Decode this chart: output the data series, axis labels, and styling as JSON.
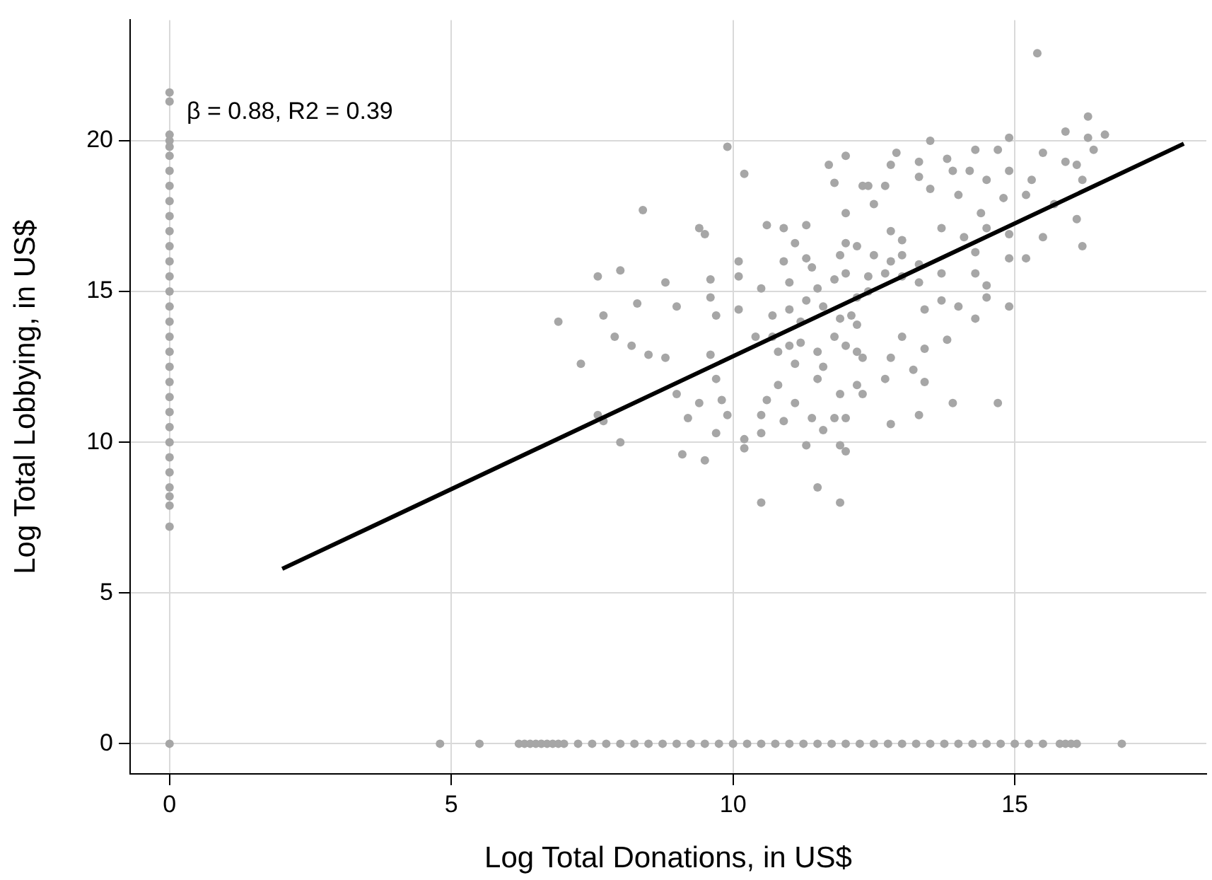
{
  "chart_data": {
    "type": "scatter",
    "xlabel": "Log Total Donations, in US$",
    "ylabel": "Log Total Lobbying, in US$",
    "annotations": [
      "β = 0.88, R2 = 0.39"
    ],
    "xlim": [
      -0.7,
      18.4
    ],
    "ylim": [
      -1,
      24
    ],
    "xticks": [
      0,
      5,
      10,
      15
    ],
    "yticks": [
      0,
      5,
      10,
      15,
      20
    ],
    "grid": true,
    "legend": false,
    "series": [
      {
        "color": "#a6a6a6",
        "marker": "circle",
        "x": [
          0,
          0,
          0,
          0,
          0,
          0,
          0,
          0,
          0,
          0,
          0,
          0,
          0,
          0,
          0,
          0,
          0,
          0,
          0,
          0,
          0,
          0,
          0,
          0,
          0,
          0,
          0,
          0,
          0,
          0,
          0,
          0,
          4.8,
          5.5,
          6.2,
          6.3,
          6.4,
          6.5,
          6.6,
          6.7,
          6.8,
          6.9,
          7.0,
          7.25,
          7.5,
          7.75,
          8.0,
          8.25,
          8.5,
          8.75,
          9.0,
          9.25,
          9.5,
          9.75,
          10.0,
          10.25,
          10.5,
          10.75,
          11.0,
          11.25,
          11.5,
          11.75,
          12.0,
          12.25,
          12.5,
          12.75,
          13.0,
          13.25,
          13.5,
          13.75,
          14.0,
          14.25,
          14.5,
          14.75,
          15.0,
          15.25,
          15.5,
          15.8,
          15.9,
          16.0,
          16.1,
          16.9,
          9.9,
          10.2,
          8.4,
          9.4,
          9.5,
          10.6,
          10.9,
          11.3,
          11.7,
          12.0,
          11.8,
          12.0,
          7.6,
          8.0,
          8.8,
          6.9,
          7.3,
          7.7,
          7.9,
          8.2,
          8.3,
          8.5,
          9.0,
          9.6,
          9.6,
          9.7,
          10.1,
          10.1,
          10.5,
          10.1,
          10.4,
          7.6,
          8.0,
          7.7,
          8.8,
          9.0,
          9.1,
          9.5,
          9.2,
          9.4,
          9.7,
          9.8,
          9.9,
          9.7,
          9.6,
          10.2,
          10.2,
          10.5,
          10.5,
          10.6,
          10.5,
          10.8,
          10.9,
          11.1,
          11.1,
          11.4,
          11.6,
          11.3,
          11.5,
          11.9,
          11.9,
          12.0,
          11.8,
          11.5,
          11.9,
          12.0,
          11.0,
          11.3,
          11.5,
          11.8,
          12.0,
          11.0,
          10.9,
          11.3,
          11.1,
          12.0,
          12.2,
          10.7,
          10.8,
          11.2,
          11.5,
          11.8,
          12.0,
          12.3,
          12.2,
          11.9,
          12.2,
          12.3,
          15.4,
          16.3,
          15.9,
          16.3,
          16.6,
          16.4,
          14.9,
          13.5,
          14.3,
          14.7,
          12.9,
          15.5,
          13.3,
          15.9,
          16.1,
          12.8,
          13.8,
          16.2,
          12.4,
          12.7,
          13.3,
          13.9,
          14.2,
          14.5,
          14.9,
          15.3,
          13.5,
          14.0,
          14.8,
          15.2,
          15.7,
          16.1,
          15.5,
          16.2,
          15.2,
          14.9,
          14.9,
          14.7,
          13.9,
          12.8,
          13.7,
          14.4,
          12.5,
          13.0,
          14.1,
          14.5,
          14.9,
          13.3,
          13.7,
          14.3,
          14.3,
          14.5,
          14.5,
          14.0,
          13.7,
          13.3,
          13.4,
          13.8,
          14.3,
          13.4,
          13.2,
          13.4,
          13.0,
          12.8,
          12.7,
          12.3,
          12.8,
          13.3,
          12.1,
          12.4,
          12.7,
          12.5,
          13.0,
          11.2,
          11.6,
          12.4,
          12.8,
          12.2,
          13.0,
          11.4,
          11.9,
          10.7,
          11.0,
          11.6,
          12.2
        ],
        "values": [
          0,
          7.2,
          7.9,
          8.2,
          8.5,
          9.0,
          9.5,
          10.0,
          10.5,
          11.0,
          11.5,
          12.0,
          12.5,
          13.0,
          13.5,
          14.0,
          14.5,
          15.0,
          15.5,
          16.0,
          16.5,
          17.0,
          17.5,
          18.0,
          18.5,
          19.0,
          19.5,
          19.8,
          20.0,
          20.2,
          21.3,
          21.6,
          0,
          0,
          0,
          0,
          0,
          0,
          0,
          0,
          0,
          0,
          0,
          0,
          0,
          0,
          0,
          0,
          0,
          0,
          0,
          0,
          0,
          0,
          0,
          0,
          0,
          0,
          0,
          0,
          0,
          0,
          0,
          0,
          0,
          0,
          0,
          0,
          0,
          0,
          0,
          0,
          0,
          0,
          0,
          0,
          0,
          0,
          0,
          0,
          0,
          0,
          19.8,
          18.9,
          17.7,
          17.1,
          16.9,
          17.2,
          17.1,
          17.2,
          19.2,
          19.5,
          18.6,
          17.6,
          15.5,
          15.7,
          15.3,
          14.0,
          12.6,
          14.2,
          13.5,
          13.2,
          14.6,
          12.9,
          14.5,
          15.4,
          14.8,
          14.2,
          16.0,
          15.5,
          15.1,
          14.4,
          13.5,
          10.9,
          10.0,
          10.7,
          12.8,
          11.6,
          9.6,
          9.4,
          10.8,
          11.3,
          10.3,
          11.4,
          10.9,
          12.1,
          12.9,
          10.1,
          9.8,
          10.3,
          10.9,
          11.4,
          8.0,
          11.9,
          10.7,
          12.6,
          11.3,
          10.8,
          10.4,
          9.9,
          8.5,
          8.0,
          9.9,
          9.7,
          10.8,
          12.1,
          11.6,
          10.8,
          14.4,
          14.7,
          15.1,
          15.4,
          15.6,
          15.3,
          16.0,
          16.1,
          16.6,
          16.6,
          16.5,
          13.5,
          13.0,
          13.3,
          13.0,
          13.5,
          13.2,
          12.8,
          11.9,
          14.1,
          13.9,
          18.5,
          22.9,
          20.8,
          20.3,
          20.1,
          20.2,
          19.7,
          20.1,
          20.0,
          19.7,
          19.7,
          19.6,
          19.6,
          19.3,
          19.3,
          19.2,
          19.2,
          19.4,
          18.7,
          18.5,
          18.5,
          18.8,
          19.0,
          19.0,
          18.7,
          19.0,
          18.7,
          18.4,
          18.2,
          18.1,
          18.2,
          17.9,
          17.4,
          16.8,
          16.5,
          16.1,
          16.1,
          14.5,
          11.3,
          11.3,
          17.0,
          17.1,
          17.6,
          17.9,
          16.7,
          16.8,
          17.1,
          16.9,
          15.9,
          15.6,
          16.3,
          15.6,
          15.2,
          14.8,
          14.5,
          14.7,
          15.3,
          14.4,
          13.4,
          14.1,
          13.1,
          12.4,
          12.0,
          13.5,
          12.8,
          12.1,
          11.6,
          10.6,
          10.9,
          14.2,
          15.0,
          15.6,
          16.2,
          16.2,
          14.0,
          14.5,
          15.5,
          16.0,
          14.8,
          15.5,
          15.8,
          16.2,
          14.2,
          13.2,
          12.5,
          13.0
        ]
      },
      {
        "type": "line",
        "marker": "none",
        "color": "#000000",
        "x": [
          2,
          18
        ],
        "values": [
          5.8,
          19.9
        ]
      }
    ]
  }
}
